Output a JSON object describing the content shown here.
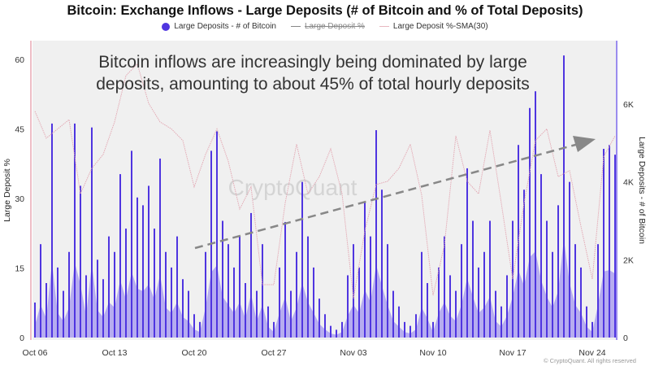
{
  "chart_data": {
    "type": "bar",
    "title": "Bitcoin: Exchange Inflows - Large Deposits (# of Bitcoin and % of Total Deposits)",
    "legend": [
      {
        "name": "Large Deposits - # of Bitcoin",
        "color": "#4f35e0",
        "style": "dot",
        "hidden": false
      },
      {
        "name": "Large Deposit %",
        "color": "#888888",
        "style": "line",
        "hidden": true
      },
      {
        "name": "Large Deposit %-SMA(30)",
        "color": "#e8b8c0",
        "style": "line",
        "hidden": false
      }
    ],
    "legend_position": "top",
    "x_ticks": [
      "Oct 06",
      "Oct 13",
      "Oct 20",
      "Oct 27",
      "Nov 03",
      "Nov 10",
      "Nov 17",
      "Nov 24"
    ],
    "y_left": {
      "label": "Large Deposit %",
      "ticks": [
        "0",
        "15",
        "30",
        "45",
        "60"
      ],
      "range": [
        0,
        64
      ]
    },
    "y_right": {
      "label": "Large Deposits - # of Bitcoin",
      "ticks": [
        "0",
        "2K",
        "4K",
        "6K"
      ],
      "range": [
        0,
        7700
      ]
    },
    "bars": {
      "name": "Large Deposits - # of Bitcoin",
      "start": "Oct 06",
      "interval_days": 0.5,
      "values": [
        900,
        2400,
        1400,
        5500,
        1800,
        1200,
        2200,
        5500,
        3900,
        1600,
        5400,
        2000,
        1500,
        2600,
        2200,
        4200,
        2800,
        4800,
        3600,
        3400,
        3900,
        2800,
        4600,
        2200,
        1800,
        2600,
        1500,
        1200,
        600,
        400,
        2200,
        4800,
        5300,
        3000,
        2400,
        1800,
        2600,
        1400,
        3200,
        1200,
        2400,
        800,
        400,
        1800,
        2970,
        1200,
        2200,
        4000,
        2600,
        1800,
        1000,
        600,
        300,
        200,
        400,
        1600,
        2400,
        1800,
        3500,
        2600,
        5330,
        3800,
        2400,
        1200,
        800,
        400,
        300,
        600,
        2200,
        1400,
        400,
        1800,
        2600,
        1600,
        1200,
        2400,
        4350,
        3000,
        1800,
        2200,
        3000,
        1200,
        800,
        1600,
        3000,
        4950,
        3800,
        5900,
        6330,
        4200,
        3000,
        2200,
        3400,
        7250,
        4000,
        2400,
        1800,
        800,
        400,
        2400,
        4850,
        4950,
        4700
      ]
    },
    "sma": {
      "name": "Large Deposit %-SMA(30)",
      "start": "Oct 06",
      "interval_days": 1,
      "values": [
        48.8,
        43,
        45,
        47,
        31,
        36.5,
        39.5,
        46.5,
        56.5,
        59,
        50.5,
        46.5,
        45,
        42.5,
        32.5,
        39.5,
        45,
        38,
        27.7,
        32.5,
        11.4,
        11.4,
        29,
        41.7,
        31,
        34.7,
        40.7,
        31,
        8.4,
        23,
        33,
        33.7,
        36.5,
        41.7,
        30.7,
        9.1,
        20,
        43.5,
        33.7,
        31,
        44.7,
        29,
        12.6,
        29,
        42.5,
        45,
        34.7,
        36,
        24,
        12.6,
        39,
        43.5
      ]
    },
    "grid": false,
    "annotation": "Bitcoin inflows are increasingly being dominated by large deposits, amounting to about 45% of total hourly deposits",
    "annotation_line2": "deposits, amounting to about 45% of total hourly deposits",
    "annotation_line1": "Bitcoin inflows are increasingly being dominated by large",
    "trend_arrow": "dashed upward trend arrow",
    "watermark": "CryptoQuant",
    "copyright": "© CryptoQuant. All rights reserved",
    "colors": {
      "bars": "#4f35e0",
      "bar_fill": "#9d8ff0",
      "sma": "#e3a9b4",
      "plot_bg": "#f0f0f0",
      "trend": "#888888"
    }
  }
}
